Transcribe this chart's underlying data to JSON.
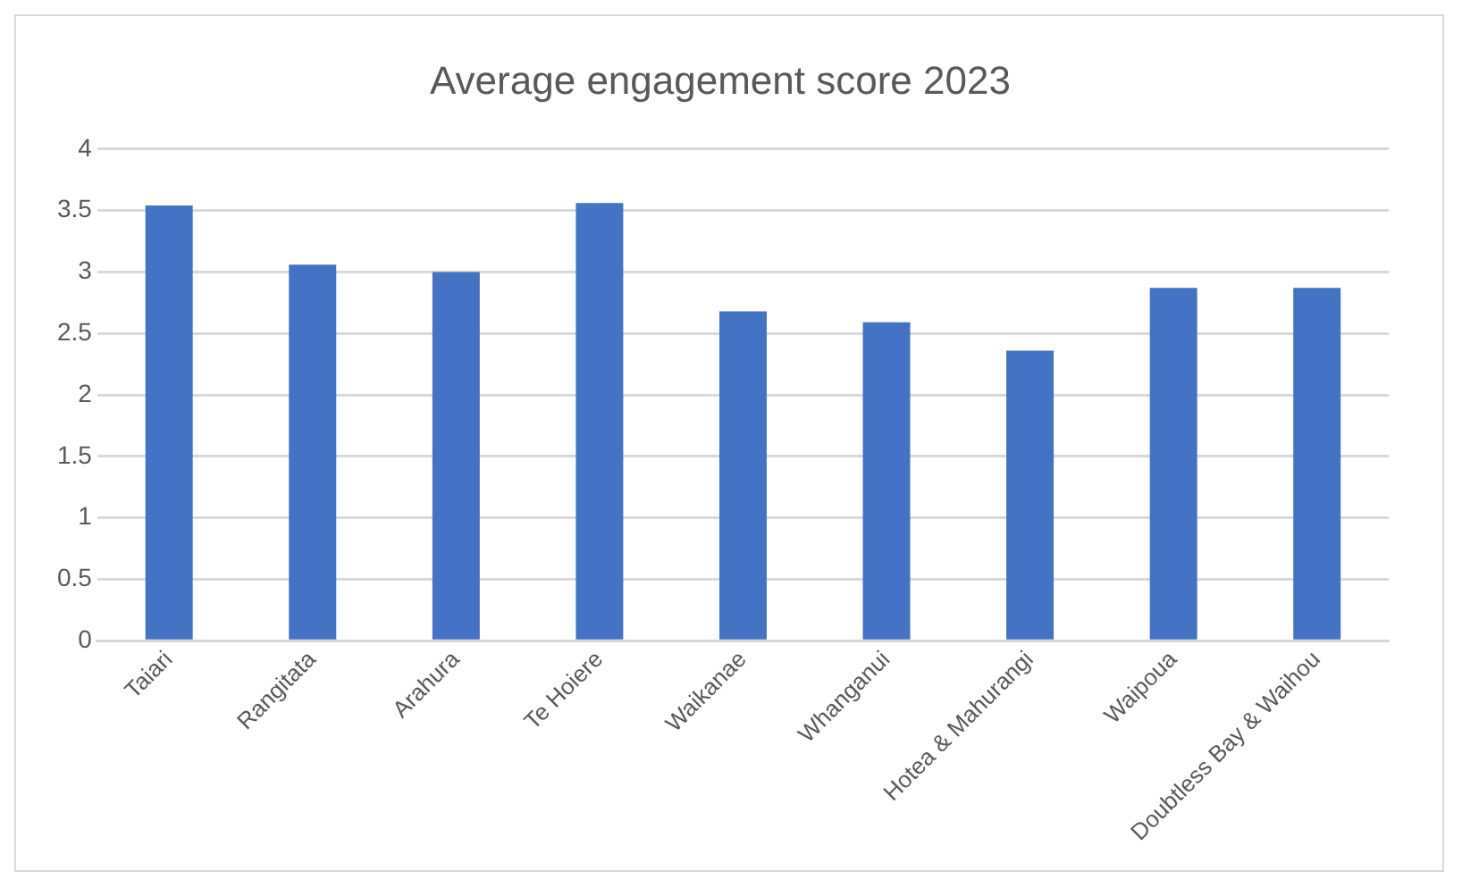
{
  "chart_data": {
    "type": "bar",
    "title": "Average engagement score 2023",
    "categories": [
      "Taiari",
      "Rangitata",
      "Arahura",
      "Te Hoiere",
      "Waikanae",
      "Whanganui",
      "Hotea & Mahurangi",
      "Waipoua",
      "Doubtless Bay & Waihou"
    ],
    "values": [
      3.54,
      3.06,
      3.0,
      3.56,
      2.68,
      2.59,
      2.36,
      2.87,
      2.87
    ],
    "color": "#4472c4",
    "ylim": [
      0,
      4
    ],
    "yticks": [
      0,
      0.5,
      1,
      1.5,
      2,
      2.5,
      3,
      3.5,
      4
    ],
    "grid": "y",
    "legend": false
  }
}
